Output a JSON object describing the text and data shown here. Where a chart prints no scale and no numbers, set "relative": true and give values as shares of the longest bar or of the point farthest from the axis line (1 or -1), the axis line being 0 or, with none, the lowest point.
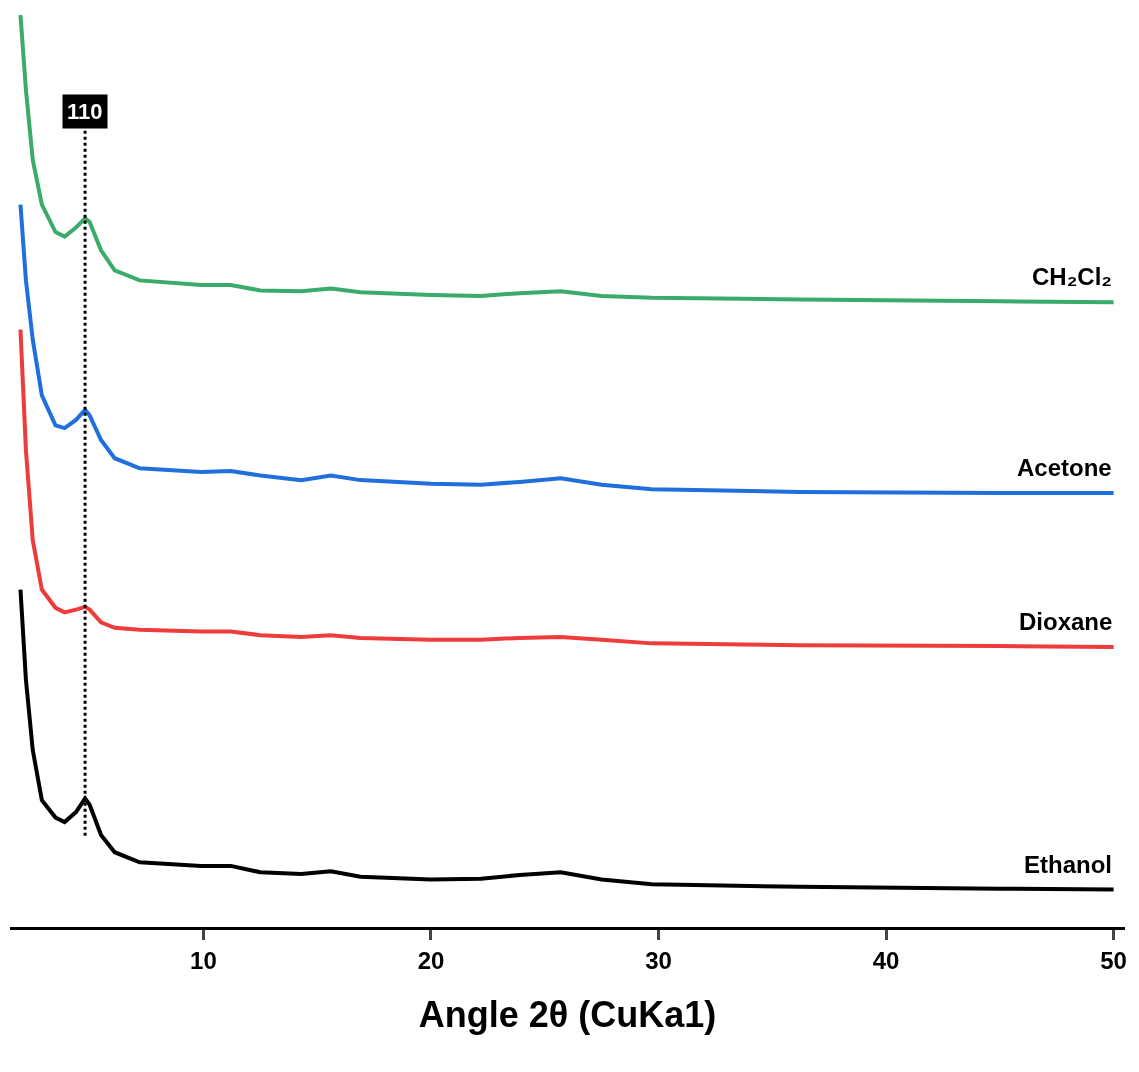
{
  "chart_data": {
    "type": "line",
    "relative": true,
    "xlabel": "Angle 2θ (CuKa1)",
    "xlim": [
      1.5,
      50.5
    ],
    "xticks": [
      10,
      20,
      30,
      40,
      50
    ],
    "grid": false,
    "legend": false,
    "marker": "none",
    "line_style": "solid",
    "x": [
      1.96,
      2.2,
      2.5,
      2.9,
      3.5,
      3.9,
      4.4,
      4.8,
      5.0,
      5.5,
      6.1,
      7.2,
      9.9,
      11.2,
      12.5,
      14.3,
      15.6,
      16.9,
      20,
      22.2,
      23.9,
      25.7,
      27.5,
      29.7,
      36.2,
      45,
      50
    ],
    "series": [
      {
        "name": "CH₂Cl₂",
        "color": "#3aab6a",
        "values": [
          1.0,
          0.918,
          0.841,
          0.792,
          0.762,
          0.757,
          0.767,
          0.777,
          0.773,
          0.742,
          0.72,
          0.709,
          0.704,
          0.704,
          0.698,
          0.697,
          0.7,
          0.696,
          0.693,
          0.692,
          0.695,
          0.697,
          0.692,
          0.69,
          0.688,
          0.686,
          0.685
        ]
      },
      {
        "name": "Acetone",
        "color": "#1f6fdc",
        "values": [
          0.792,
          0.709,
          0.644,
          0.583,
          0.55,
          0.547,
          0.556,
          0.567,
          0.561,
          0.534,
          0.514,
          0.503,
          0.499,
          0.5,
          0.495,
          0.49,
          0.495,
          0.49,
          0.486,
          0.485,
          0.488,
          0.492,
          0.485,
          0.48,
          0.477,
          0.476,
          0.476
        ]
      },
      {
        "name": "Dioxane",
        "color": "#ee3b3b",
        "values": [
          0.655,
          0.523,
          0.424,
          0.37,
          0.35,
          0.345,
          0.348,
          0.351,
          0.348,
          0.334,
          0.328,
          0.326,
          0.324,
          0.324,
          0.32,
          0.318,
          0.32,
          0.317,
          0.315,
          0.315,
          0.317,
          0.318,
          0.315,
          0.311,
          0.309,
          0.308,
          0.307
        ]
      },
      {
        "name": "Ethanol",
        "color": "#000000",
        "values": [
          0.37,
          0.271,
          0.194,
          0.139,
          0.12,
          0.115,
          0.126,
          0.141,
          0.134,
          0.101,
          0.082,
          0.071,
          0.067,
          0.067,
          0.06,
          0.058,
          0.061,
          0.055,
          0.052,
          0.053,
          0.057,
          0.06,
          0.052,
          0.047,
          0.044,
          0.042,
          0.041
        ]
      }
    ],
    "ref_lines": [
      {
        "axis": "x",
        "value": 4.8,
        "color": "#000000",
        "line_style": "dotted"
      }
    ],
    "annotations": [
      {
        "text": "110",
        "x": 4.8,
        "y": 0.875
      }
    ]
  }
}
